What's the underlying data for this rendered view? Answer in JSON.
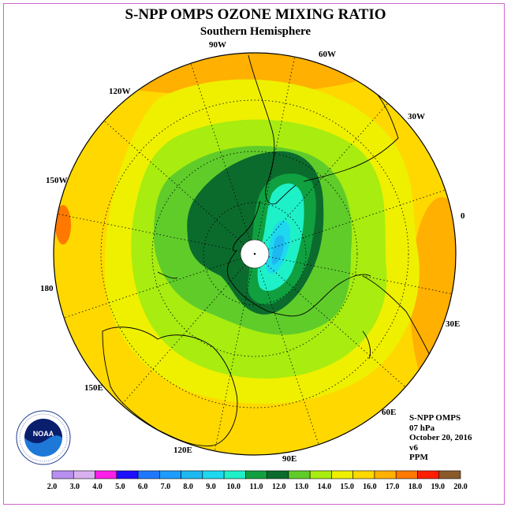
{
  "header": {
    "title": "S-NPP OMPS OZONE MIXING RATIO",
    "subtitle": "Southern Hemisphere"
  },
  "longitude_labels": [
    "90W",
    "60W",
    "30W",
    "0",
    "30E",
    "60E",
    "90E",
    "120E",
    "150E",
    "180",
    "150W",
    "120W"
  ],
  "info": {
    "instrument": "S-NPP OMPS",
    "level": "07 hPa",
    "date": "October 20, 2016",
    "version": "v6",
    "units": "PPM"
  },
  "logo": {
    "name": "noaa-logo",
    "text": "NOAA"
  },
  "colorbar": {
    "ticks": [
      "2.0",
      "3.0",
      "4.0",
      "5.0",
      "6.0",
      "7.0",
      "8.0",
      "9.0",
      "10.0",
      "11.0",
      "12.0",
      "13.0",
      "14.0",
      "15.0",
      "16.0",
      "17.0",
      "18.0",
      "19.0",
      "20.0"
    ],
    "colors": [
      "#b88ff0",
      "#d8b0f0",
      "#ff1ee8",
      "#1e10ff",
      "#1e78ff",
      "#1e9cff",
      "#1eb8f0",
      "#1ed8f0",
      "#1ef0c8",
      "#10a040",
      "#0b6b2d",
      "#5fcc2a",
      "#a8ec10",
      "#eef000",
      "#ffd800",
      "#ffb000",
      "#ff7800",
      "#ff1e00",
      "#8b5a2b"
    ]
  },
  "chart_data": {
    "type": "heatmap",
    "title": "S-NPP OMPS OZONE MIXING RATIO",
    "subtitle": "Southern Hemisphere",
    "projection": "polar stereographic, south pole centered",
    "units": "PPM",
    "pressure_level": "07 hPa",
    "date": "October 20, 2016",
    "color_scale_min": 2.0,
    "color_scale_max": 20.0,
    "contour_interval": 1.0,
    "regions": [
      {
        "region": "outer ring (low latitudes)",
        "range_ppm": [
          16.0,
          17.0
        ]
      },
      {
        "region": "mid latitudes",
        "range_ppm": [
          15.0,
          16.0
        ]
      },
      {
        "region": "sub-polar band",
        "range_ppm": [
          13.0,
          15.0
        ]
      },
      {
        "region": "polar vortex edge",
        "range_ppm": [
          11.0,
          12.0
        ]
      },
      {
        "region": "polar vortex core",
        "range_ppm": [
          8.0,
          10.0
        ]
      },
      {
        "region": "small spot near 150W",
        "range_ppm": [
          17.0,
          18.0
        ]
      }
    ]
  }
}
